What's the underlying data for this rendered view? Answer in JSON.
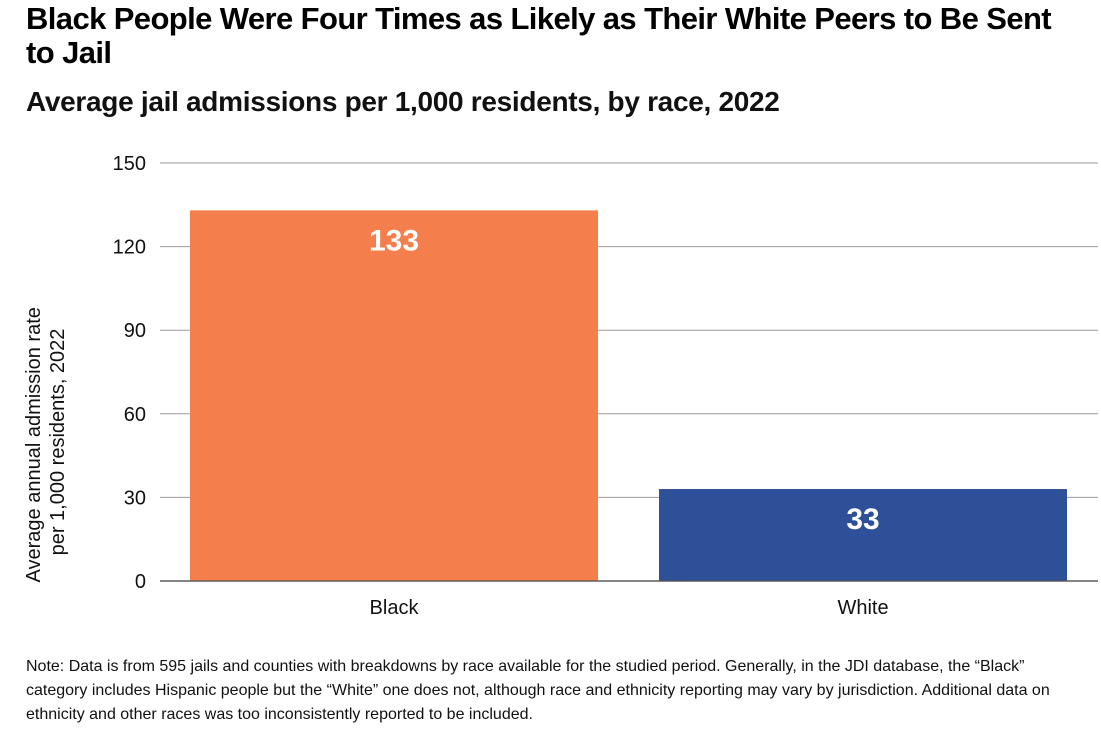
{
  "colors": {
    "black_bar": "#F47E4C",
    "white_bar": "#2D5098",
    "grid": "#9a9a9a",
    "axis": "#555555",
    "text": "#111111",
    "label_on_bar": "#ffffff"
  },
  "chart_data": {
    "type": "bar",
    "title": "Black People Were Four Times as Likely as Their White Peers to Be Sent to Jail",
    "subtitle": "Average jail admissions per 1,000 residents, by race, 2022",
    "categories": [
      "Black",
      "White"
    ],
    "values": [
      133,
      33
    ],
    "data_labels": [
      "133",
      "33"
    ],
    "ylabel_lines": [
      "Average annual admission rate",
      "per 1,000 residents, 2022"
    ],
    "xlabel": "",
    "ylim": [
      0,
      150
    ],
    "yticks": [
      0,
      30,
      60,
      90,
      120,
      150
    ],
    "grid": true,
    "legend": "none"
  },
  "note": "Note: Data is from 595 jails and counties with breakdowns by race available for the studied period. Generally, in the JDI database, the “Black” category includes Hispanic people but the “White” one does not, although race and ethnicity reporting may vary by jurisdiction. Additional data on ethnicity and other races was too inconsistently reported to be included."
}
